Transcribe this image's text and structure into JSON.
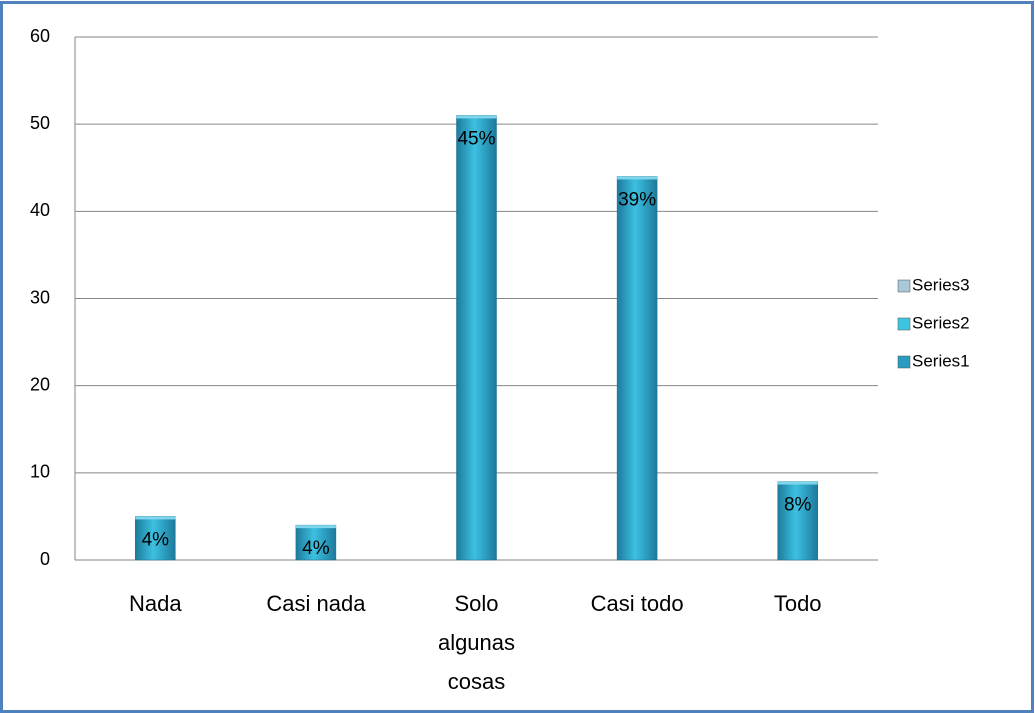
{
  "chart_data": {
    "type": "bar",
    "categories": [
      "Nada",
      "Casi nada",
      "Solo algunas cosas",
      "Casi todo",
      "Todo"
    ],
    "series": [
      {
        "name": "Series1",
        "color": "#2a9cc0",
        "values": [
          5,
          4,
          51,
          44,
          9
        ],
        "value_labels": [
          "4%",
          "4%",
          "45%",
          "39%",
          "8%"
        ]
      },
      {
        "name": "Series2",
        "color": "#3cc4e0",
        "values": [
          0,
          0,
          0,
          0,
          0
        ]
      },
      {
        "name": "Series3",
        "color": "#a8c8d8",
        "values": [
          0,
          0,
          0,
          0,
          0
        ]
      }
    ],
    "ylim": [
      0,
      60
    ],
    "yticks": [
      0,
      10,
      20,
      30,
      40,
      50,
      60
    ],
    "grid": true,
    "legend": "right"
  }
}
